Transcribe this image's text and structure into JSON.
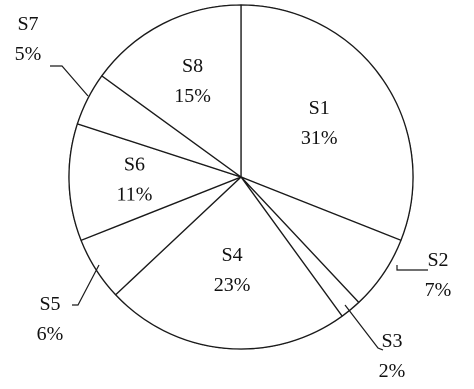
{
  "chart_data": {
    "type": "pie",
    "slices": [
      {
        "name": "S1",
        "percent_label": "31%",
        "value": 31
      },
      {
        "name": "S2",
        "percent_label": "7%",
        "value": 7
      },
      {
        "name": "S3",
        "percent_label": "2%",
        "value": 2
      },
      {
        "name": "S4",
        "percent_label": "23%",
        "value": 23
      },
      {
        "name": "S5",
        "percent_label": "6%",
        "value": 6
      },
      {
        "name": "S6",
        "percent_label": "11%",
        "value": 11
      },
      {
        "name": "S7",
        "percent_label": "5%",
        "value": 5
      },
      {
        "name": "S8",
        "percent_label": "15%",
        "value": 15
      }
    ],
    "start": "12 o'clock",
    "direction": "clockwise",
    "colors": {
      "fill": "#ffffff",
      "stroke": "#1a1a1a",
      "text": "#111111"
    }
  }
}
